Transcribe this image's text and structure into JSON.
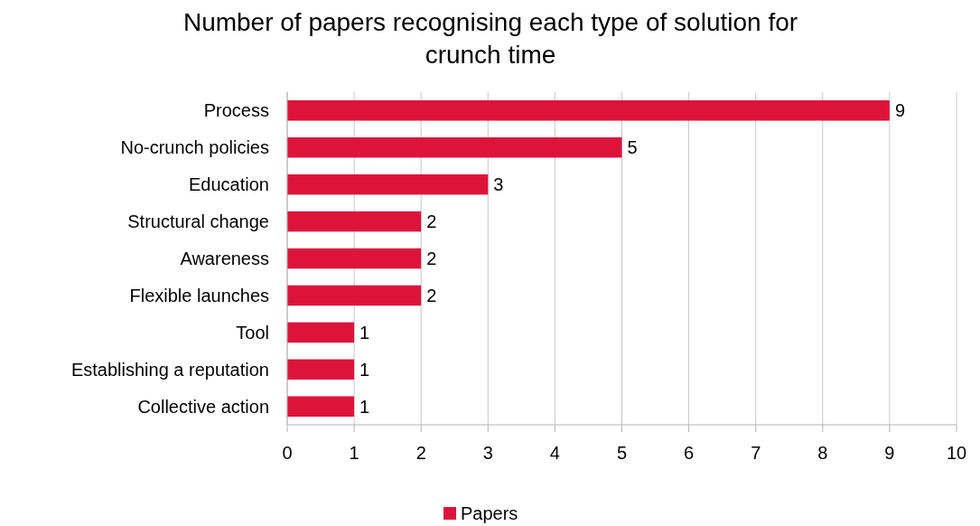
{
  "chart_data": {
    "type": "bar",
    "orientation": "horizontal",
    "title": "Number of papers recognising each type of solution for crunch time",
    "categories": [
      "Process",
      "No-crunch policies",
      "Education",
      "Structural change",
      "Awareness",
      "Flexible launches",
      "Tool",
      "Establishing a reputation",
      "Collective action"
    ],
    "series": [
      {
        "name": "Papers",
        "color": "#dc143c",
        "values": [
          9,
          5,
          3,
          2,
          2,
          2,
          1,
          1,
          1
        ]
      }
    ],
    "xlim": [
      0,
      10
    ],
    "xticks": [
      0,
      1,
      2,
      3,
      4,
      5,
      6,
      7,
      8,
      9,
      10
    ],
    "grid": "x",
    "legend": "bottom",
    "data_labels": true
  }
}
